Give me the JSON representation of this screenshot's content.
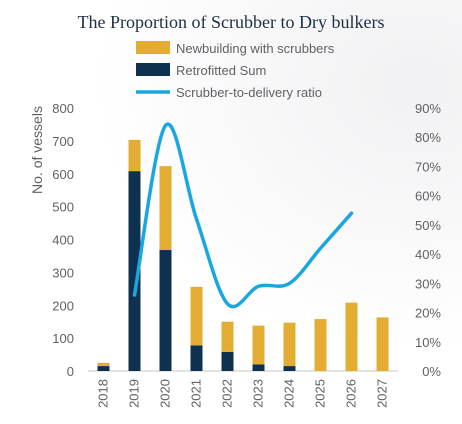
{
  "chart_data": {
    "type": "bar",
    "title": "The Proportion of Scrubber to Dry bulkers",
    "ylabel": "No. of vessels",
    "y2label": "",
    "ylim": [
      0,
      800
    ],
    "y_ticks": [
      "0",
      "100",
      "200",
      "300",
      "400",
      "500",
      "600",
      "700",
      "800"
    ],
    "y2lim": [
      0,
      90
    ],
    "y2_ticks": [
      "0%",
      "10%",
      "20%",
      "30%",
      "40%",
      "50%",
      "60%",
      "70%",
      "80%",
      "90%"
    ],
    "categories": [
      "2018",
      "2019",
      "2020",
      "2021",
      "2022",
      "2023",
      "2024",
      "2025",
      "2026",
      "2027"
    ],
    "stacked": true,
    "legend_position": "top",
    "series": [
      {
        "name": "Newbuilding with scrubbers",
        "kind": "bar",
        "color": "#e3ad33",
        "values": [
          10,
          95,
          255,
          178,
          92,
          118,
          132,
          158,
          208,
          163
        ]
      },
      {
        "name": "Retrofitted Sum",
        "kind": "bar",
        "color": "#0f3150",
        "values": [
          15,
          608,
          368,
          78,
          58,
          20,
          15,
          0,
          0,
          0
        ]
      },
      {
        "name": "Scrubber-to-delivery ratio",
        "kind": "line",
        "axis": "right",
        "color": "#1aa7e0",
        "values": [
          null,
          26,
          84,
          52,
          23,
          29,
          30,
          42,
          54,
          null
        ]
      }
    ]
  }
}
